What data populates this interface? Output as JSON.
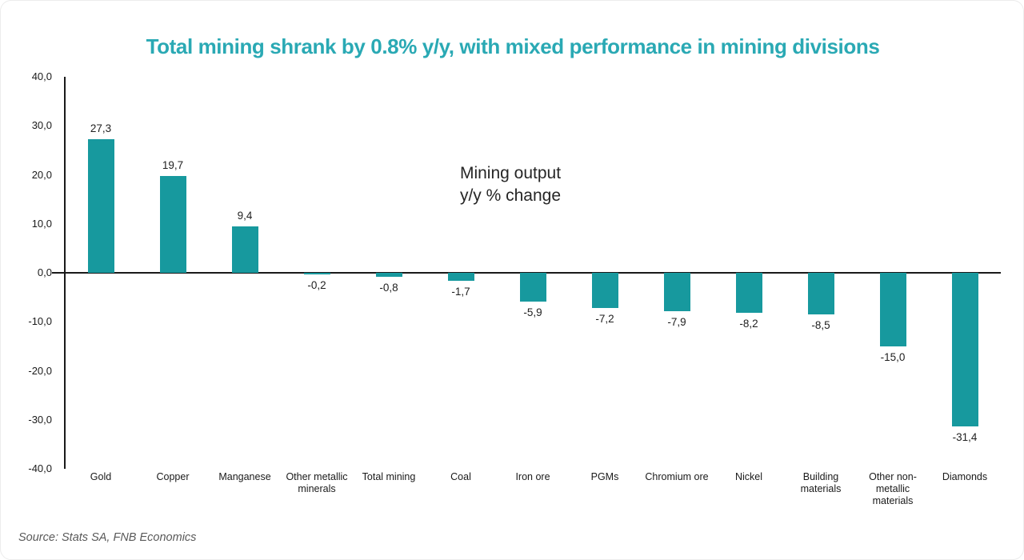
{
  "title": "Total mining shrank by 0.8% y/y, with mixed performance in mining divisions",
  "annotation": "Mining output\ny/y % change",
  "source": "Source: Stats SA, FNB Economics",
  "colors": {
    "bar": "#17999E",
    "title_text": "#2AA9B4",
    "axis": "#1a1a1a",
    "value_label": "#1f1f1f",
    "source_text": "#595959"
  },
  "chart_data": {
    "type": "bar",
    "title": "Total mining shrank by 0.8% y/y, with mixed performance in mining divisions",
    "annotation": "Mining output\ny/y % change",
    "categories": [
      "Gold",
      "Copper",
      "Manganese",
      "Other metallic\nminerals",
      "Total mining",
      "Coal",
      "Iron ore",
      "PGMs",
      "Chromium ore",
      "Nickel",
      "Building\nmaterials",
      "Other non-\nmetallic\nmaterials",
      "Diamonds"
    ],
    "values": [
      27.3,
      19.7,
      9.4,
      -0.2,
      -0.8,
      -1.7,
      -5.9,
      -7.2,
      -7.9,
      -8.2,
      -8.5,
      -15.0,
      -31.4
    ],
    "value_labels": [
      "27,3",
      "19,7",
      "9,4",
      "-0,2",
      "-0,8",
      "-1,7",
      "-5,9",
      "-7,2",
      "-7,9",
      "-8,2",
      "-8,5",
      "-15,0",
      "-31,4"
    ],
    "xlabel": "",
    "ylabel": "",
    "y_axis": {
      "ticks": [
        40,
        30,
        20,
        10,
        0,
        -10,
        -20,
        -30,
        -40
      ],
      "tick_labels": [
        "40,0",
        "30,0",
        "20,0",
        "10,0",
        "0,0",
        "-10,0",
        "-20,0",
        "-30,0",
        "-40,0"
      ],
      "ylim": [
        -40,
        40
      ]
    },
    "grid": false,
    "legend": false
  }
}
